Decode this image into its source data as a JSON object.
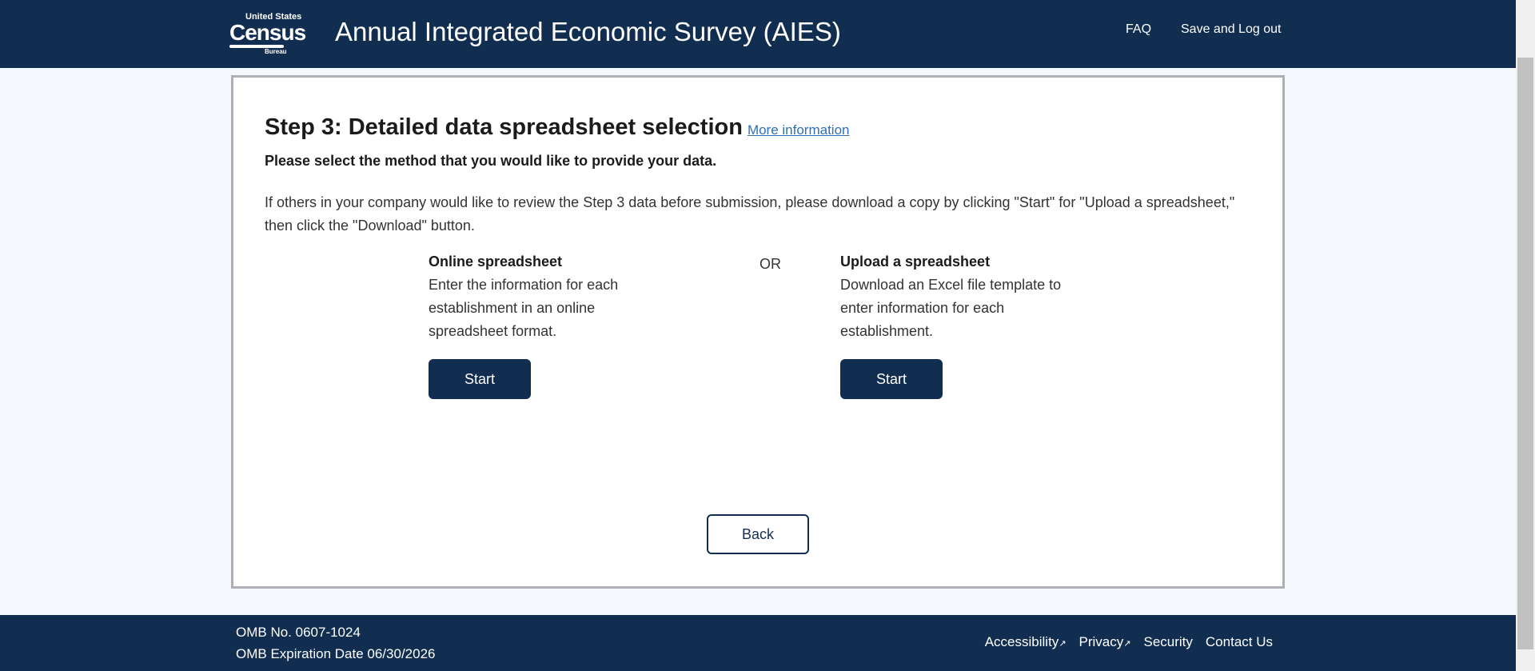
{
  "header": {
    "logo_text": "United States Census Bureau",
    "title": "Annual Integrated Economic Survey (AIES)",
    "faq": "FAQ",
    "logout": "Save and Log out"
  },
  "main": {
    "heading": "Step 3: Detailed data spreadsheet selection",
    "more_info": "More information",
    "subheading": "Please select the method that you would like to provide your data.",
    "info": "If others in your company would like to review the Step 3 data before submission, please download a copy by clicking \"Start\" for \"Upload a spreadsheet,\" then click the \"Download\" button.",
    "options": [
      {
        "title": "Online spreadsheet",
        "desc": "Enter the information for each establishment in an online spreadsheet format.",
        "button": "Start"
      },
      {
        "title": "Upload a spreadsheet",
        "desc": "Download an Excel file template to enter information for each establishment.",
        "button": "Start"
      }
    ],
    "or": "OR",
    "back": "Back"
  },
  "footer": {
    "omb_no": "OMB No. 0607-1024",
    "omb_exp": "OMB Expiration Date 06/30/2026",
    "links": [
      "Accessibility",
      "Privacy",
      "Security",
      "Contact Us"
    ],
    "external_icon": "↗"
  },
  "colors": {
    "navy": "#112e51",
    "link": "#2e6fb5"
  }
}
